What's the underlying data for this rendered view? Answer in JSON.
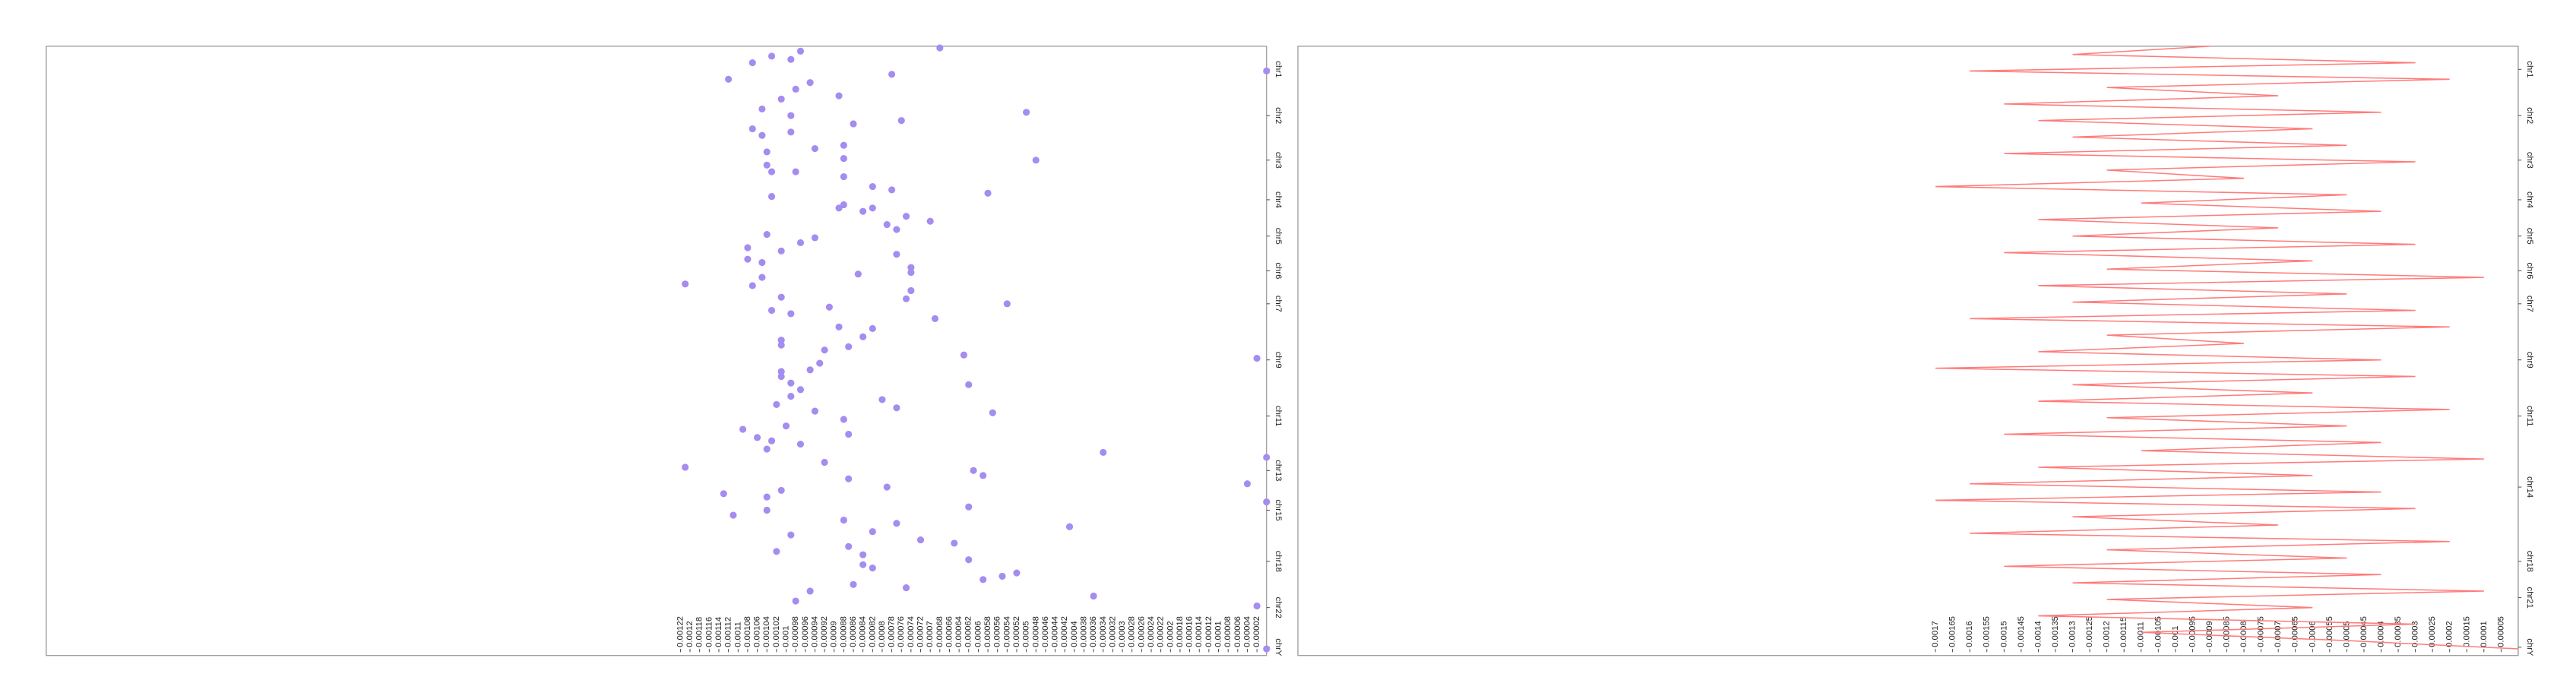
{
  "chart_data": [
    {
      "type": "scatter",
      "color": "#a48cf0",
      "xlim": [
        0.00254,
        0
      ],
      "ylim": [
        0,
        369
      ],
      "xticks": [
        0.00122,
        0.0012,
        0.00118,
        0.00116,
        0.00114,
        0.00112,
        0.0011,
        0.00108,
        0.00106,
        0.00104,
        0.00102,
        0.001,
        0.00098,
        0.00096,
        0.00094,
        0.00092,
        0.0009,
        0.00088,
        0.00086,
        0.00084,
        0.00082,
        0.0008,
        0.00078,
        0.00076,
        0.00074,
        0.00072,
        0.0007,
        0.00068,
        0.00066,
        0.00064,
        0.00062,
        0.0006,
        0.00058,
        0.00056,
        0.00054,
        0.00052,
        0.0005,
        0.00048,
        0.00046,
        0.00044,
        0.00042,
        0.0004,
        0.00038,
        0.00036,
        0.00034,
        0.00032,
        0.0003,
        0.00028,
        0.00026,
        0.00024,
        0.00022,
        0.0002,
        0.00018,
        0.00016,
        0.00014,
        0.00012,
        0.0001,
        8e-05,
        6e-05,
        4e-05,
        2e-05
      ],
      "yticks": [
        {
          "value": 14,
          "label": "chr1"
        },
        {
          "value": 42,
          "label": "chr2"
        },
        {
          "value": 69,
          "label": "chr3"
        },
        {
          "value": 93,
          "label": "chr4"
        },
        {
          "value": 115,
          "label": "chr5"
        },
        {
          "value": 136,
          "label": "chr6"
        },
        {
          "value": 156,
          "label": "chr7"
        },
        {
          "value": 190,
          "label": "chr9"
        },
        {
          "value": 224,
          "label": "chr11"
        },
        {
          "value": 257,
          "label": "chr13"
        },
        {
          "value": 281,
          "label": "chr15"
        },
        {
          "value": 312,
          "label": "chr18"
        },
        {
          "value": 340,
          "label": "chr22"
        },
        {
          "value": 364,
          "label": "chrY"
        }
      ],
      "values": [
        0.00068,
        0.00097,
        0.00099,
        0.00103,
        0.00107,
        0.00095,
        0.00112,
        0.00078,
        0.0,
        0.00098,
        0.00101,
        0.00089,
        0.00105,
        0.00099,
        0.0005,
        0.00086,
        0.00076,
        0.00107,
        0.00105,
        0.00099,
        0.00104,
        0.00094,
        0.00088,
        0.00088,
        0.00048,
        0.00104,
        0.00103,
        0.00098,
        0.00088,
        0.00082,
        0.00078,
        0.00103,
        0.00058,
        0.00088,
        0.00089,
        0.00082,
        0.00084,
        0.00075,
        0.0007,
        0.00079,
        0.00077,
        0.00104,
        0.00094,
        0.00097,
        0.00108,
        0.00101,
        0.00077,
        0.00108,
        0.00105,
        0.00074,
        0.00074,
        0.00105,
        0.00085,
        0.00121,
        0.00107,
        0.00074,
        0.00075,
        0.00101,
        0.00054,
        0.00091,
        0.00103,
        0.00099,
        0.00069,
        0.00089,
        0.00082,
        0.00084,
        0.00101,
        0.00101,
        0.00087,
        0.00092,
        0.00063,
        2e-05,
        0.00093,
        0.00095,
        0.00101,
        0.00101,
        0.00099,
        0.00062,
        0.00097,
        0.00099,
        0.0008,
        0.00102,
        0.00077,
        0.00094,
        0.00057,
        0.00088,
        0.001,
        0.00109,
        0.00087,
        0.00106,
        0.00103,
        0.00097,
        0.00104,
        0.00034,
        0.0,
        0.00092,
        0.00121,
        0.00061,
        0.00059,
        0.00087,
        4e-05,
        0.00079,
        0.00101,
        0.00113,
        0.00104,
        0.0,
        0.00062,
        0.00104,
        0.00111,
        0.00088,
        0.00077,
        0.00041,
        0.00082,
        0.00099,
        0.00072,
        0.00065,
        0.00087,
        0.00102,
        0.00084,
        0.00062,
        0.00084,
        0.00082,
        0.00052,
        0.00055,
        0.00059,
        0.00086,
        0.00075,
        0.00095,
        0.00036,
        0.00098,
        2e-05,
        0.0
      ],
      "positions": [
        1,
        3,
        8,
        6,
        10,
        22,
        20,
        17,
        15,
        26,
        32,
        30,
        38,
        42,
        40,
        47,
        45,
        50,
        54,
        52,
        64,
        62,
        60,
        68,
        69,
        72,
        76,
        76,
        79,
        85,
        87,
        91,
        89,
        96,
        98,
        98,
        100,
        103,
        106,
        108,
        111,
        114,
        116,
        119,
        122,
        124,
        126,
        129,
        131,
        134,
        137,
        140,
        138,
        144,
        145,
        148,
        153,
        152,
        156,
        158,
        160,
        162,
        165,
        170,
        171,
        176,
        178,
        181,
        182,
        184,
        187,
        189,
        192,
        196,
        197,
        200,
        204,
        205,
        208,
        212,
        214,
        217,
        219,
        221,
        222,
        226,
        230,
        232,
        235,
        237,
        239,
        241,
        244,
        246,
        249,
        252,
        255,
        257,
        260,
        262,
        265,
        267,
        269,
        271,
        273,
        276,
        279,
        281,
        284,
        287,
        289,
        291,
        294,
        296,
        299,
        301,
        303,
        306,
        308,
        311,
        314,
        316,
        319,
        321,
        323,
        326,
        328,
        330,
        333,
        336,
        339,
        365
      ],
      "value_labels": null
    },
    {
      "type": "line",
      "color": "#ff7b7b",
      "xlim": [
        0.00356,
        0
      ],
      "ylim": [
        0,
        369
      ],
      "xticks": [
        0.0017,
        0.00165,
        0.0016,
        0.00155,
        0.0015,
        0.00145,
        0.0014,
        0.00135,
        0.0013,
        0.00125,
        0.0012,
        0.00115,
        0.0011,
        0.00105,
        0.001,
        0.00095,
        0.0009,
        0.00085,
        0.0008,
        0.00075,
        0.0007,
        0.00065,
        0.0006,
        0.00055,
        0.0005,
        0.00045,
        0.0004,
        0.00035,
        0.0003,
        0.00025,
        0.0002,
        0.00015,
        0.0001,
        5e-05
      ],
      "yticks": [
        {
          "value": 14,
          "label": "chr1"
        },
        {
          "value": 42,
          "label": "chr2"
        },
        {
          "value": 69,
          "label": "chr3"
        },
        {
          "value": 93,
          "label": "chr4"
        },
        {
          "value": 115,
          "label": "chr5"
        },
        {
          "value": 136,
          "label": "chr6"
        },
        {
          "value": 156,
          "label": "chr7"
        },
        {
          "value": 190,
          "label": "chr9"
        },
        {
          "value": 224,
          "label": "chr11"
        },
        {
          "value": 267,
          "label": "chr14"
        },
        {
          "value": 312,
          "label": "chr18"
        },
        {
          "value": 334,
          "label": "chr21"
        },
        {
          "value": 364,
          "label": "chrY"
        }
      ],
      "values": [
        0.0009,
        0.0013,
        0.0003,
        0.0016,
        0.0002,
        0.0012,
        0.0007,
        0.0015,
        0.0004,
        0.0014,
        0.0006,
        0.0013,
        0.0005,
        0.0015,
        0.0003,
        0.0012,
        0.0008,
        0.0017,
        0.0005,
        0.0011,
        0.0004,
        0.0014,
        0.0007,
        0.0013,
        0.0003,
        0.0015,
        0.0006,
        0.0012,
        0.0001,
        0.0014,
        0.0005,
        0.0013,
        0.0003,
        0.0016,
        0.0002,
        0.0012,
        0.0008,
        0.0014,
        0.0004,
        0.0017,
        0.0003,
        0.0013,
        0.0006,
        0.0014,
        0.0002,
        0.0012,
        0.0005,
        0.0015,
        0.0004,
        0.0011,
        0.0001,
        0.0014,
        0.0006,
        0.0016,
        0.0004,
        0.0017,
        0.0003,
        0.0013,
        0.0007,
        0.0016,
        0.0002,
        0.0012,
        0.0005,
        0.0015,
        0.0004,
        0.0013,
        0.0001,
        0.0012,
        0.0006,
        0.0014,
        0.0003,
        0.0011,
        0.0005,
        0.0
      ],
      "positions": [
        0,
        5,
        10,
        15,
        20,
        25,
        30,
        35,
        40,
        45,
        50,
        55,
        60,
        65,
        70,
        75,
        80,
        85,
        90,
        95,
        100,
        105,
        110,
        115,
        120,
        125,
        130,
        135,
        140,
        145,
        150,
        155,
        160,
        165,
        170,
        175,
        180,
        185,
        190,
        195,
        200,
        205,
        210,
        215,
        220,
        225,
        230,
        235,
        240,
        245,
        250,
        255,
        260,
        265,
        270,
        275,
        280,
        285,
        290,
        295,
        300,
        305,
        310,
        315,
        320,
        325,
        330,
        335,
        340,
        345,
        350,
        355,
        360,
        365
      ]
    }
  ]
}
